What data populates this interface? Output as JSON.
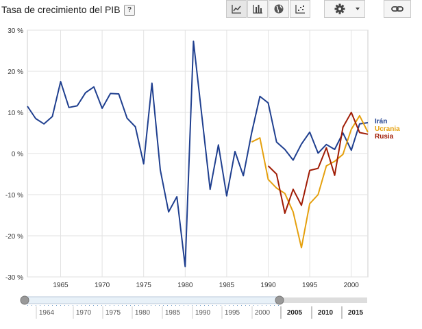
{
  "header": {
    "title": "Tasa de crecimiento del PIB",
    "help_label": "?"
  },
  "toolbar": {
    "buttons": [
      {
        "name": "line-chart-button",
        "icon": "line-chart-icon"
      },
      {
        "name": "bar-chart-button",
        "icon": "bar-chart-icon"
      },
      {
        "name": "map-button",
        "icon": "globe-icon"
      },
      {
        "name": "scatter-chart-button",
        "icon": "scatter-chart-icon"
      },
      {
        "name": "settings-button",
        "icon": "gear-icon"
      },
      {
        "name": "link-button",
        "icon": "link-icon"
      }
    ]
  },
  "chart_data": {
    "type": "line",
    "title": "Tasa de crecimiento del PIB",
    "xlim": [
      1961,
      2002
    ],
    "ylim": [
      -30,
      30
    ],
    "y_ticks": [
      30,
      20,
      10,
      0,
      -10,
      -20,
      -30
    ],
    "y_tick_labels": [
      "30 %",
      "20 %",
      "10 %",
      "0 %",
      "-10 %",
      "-20 %",
      "-30 %"
    ],
    "x_ticks": [
      1965,
      1970,
      1975,
      1980,
      1985,
      1990,
      1995,
      2000
    ],
    "x_tick_labels": [
      "1965",
      "1970",
      "1975",
      "1980",
      "1985",
      "1990",
      "1995",
      "2000"
    ],
    "grid": true,
    "legend_placement": "right",
    "series": [
      {
        "name": "Irán",
        "color": "#1f3f8f",
        "x": [
          1961,
          1962,
          1963,
          1964,
          1965,
          1966,
          1967,
          1968,
          1969,
          1970,
          1971,
          1972,
          1973,
          1974,
          1975,
          1976,
          1977,
          1978,
          1979,
          1980,
          1981,
          1982,
          1983,
          1984,
          1985,
          1986,
          1987,
          1988,
          1989,
          1990,
          1991,
          1992,
          1993,
          1994,
          1995,
          1996,
          1997,
          1998,
          1999,
          2000,
          2001,
          2002
        ],
        "values": [
          11.5,
          8.5,
          7.2,
          9.0,
          17.5,
          11.2,
          11.6,
          14.8,
          16.2,
          11.0,
          14.6,
          14.5,
          8.6,
          6.5,
          -2.5,
          17.1,
          -4.0,
          -14.2,
          -10.5,
          -27.5,
          27.3,
          9.2,
          -8.7,
          2.1,
          -10.3,
          0.5,
          -5.4,
          5.0,
          13.9,
          12.3,
          2.8,
          1.0,
          -1.6,
          2.3,
          5.2,
          0.1,
          2.2,
          1.0,
          5.0,
          0.8,
          7.2,
          7.5
        ]
      },
      {
        "name": "Ucrania",
        "color": "#e5a00d",
        "x": [
          1988,
          1989,
          1990,
          1991,
          1992,
          1993,
          1994,
          1995,
          1996,
          1997,
          1998,
          1999,
          2000,
          2001,
          2002
        ],
        "values": [
          2.8,
          3.8,
          -6.3,
          -8.4,
          -9.7,
          -14.2,
          -22.9,
          -12.2,
          -10.0,
          -3.0,
          -1.9,
          -0.2,
          5.9,
          9.2,
          5.2
        ]
      },
      {
        "name": "Rusia",
        "color": "#a01c05",
        "x": [
          1990,
          1991,
          1992,
          1993,
          1994,
          1995,
          1996,
          1997,
          1998,
          1999,
          2000,
          2001,
          2002
        ],
        "values": [
          -3.0,
          -5.0,
          -14.5,
          -8.7,
          -12.6,
          -4.1,
          -3.6,
          1.4,
          -5.3,
          6.4,
          10.0,
          5.1,
          4.7
        ]
      }
    ]
  },
  "slider": {
    "upper_labels": [
      "1964",
      "1970",
      "1975",
      "1980",
      "1985",
      "1990",
      "1995",
      "2000"
    ],
    "lower_labels": [
      "2005",
      "2010",
      "2015"
    ]
  }
}
